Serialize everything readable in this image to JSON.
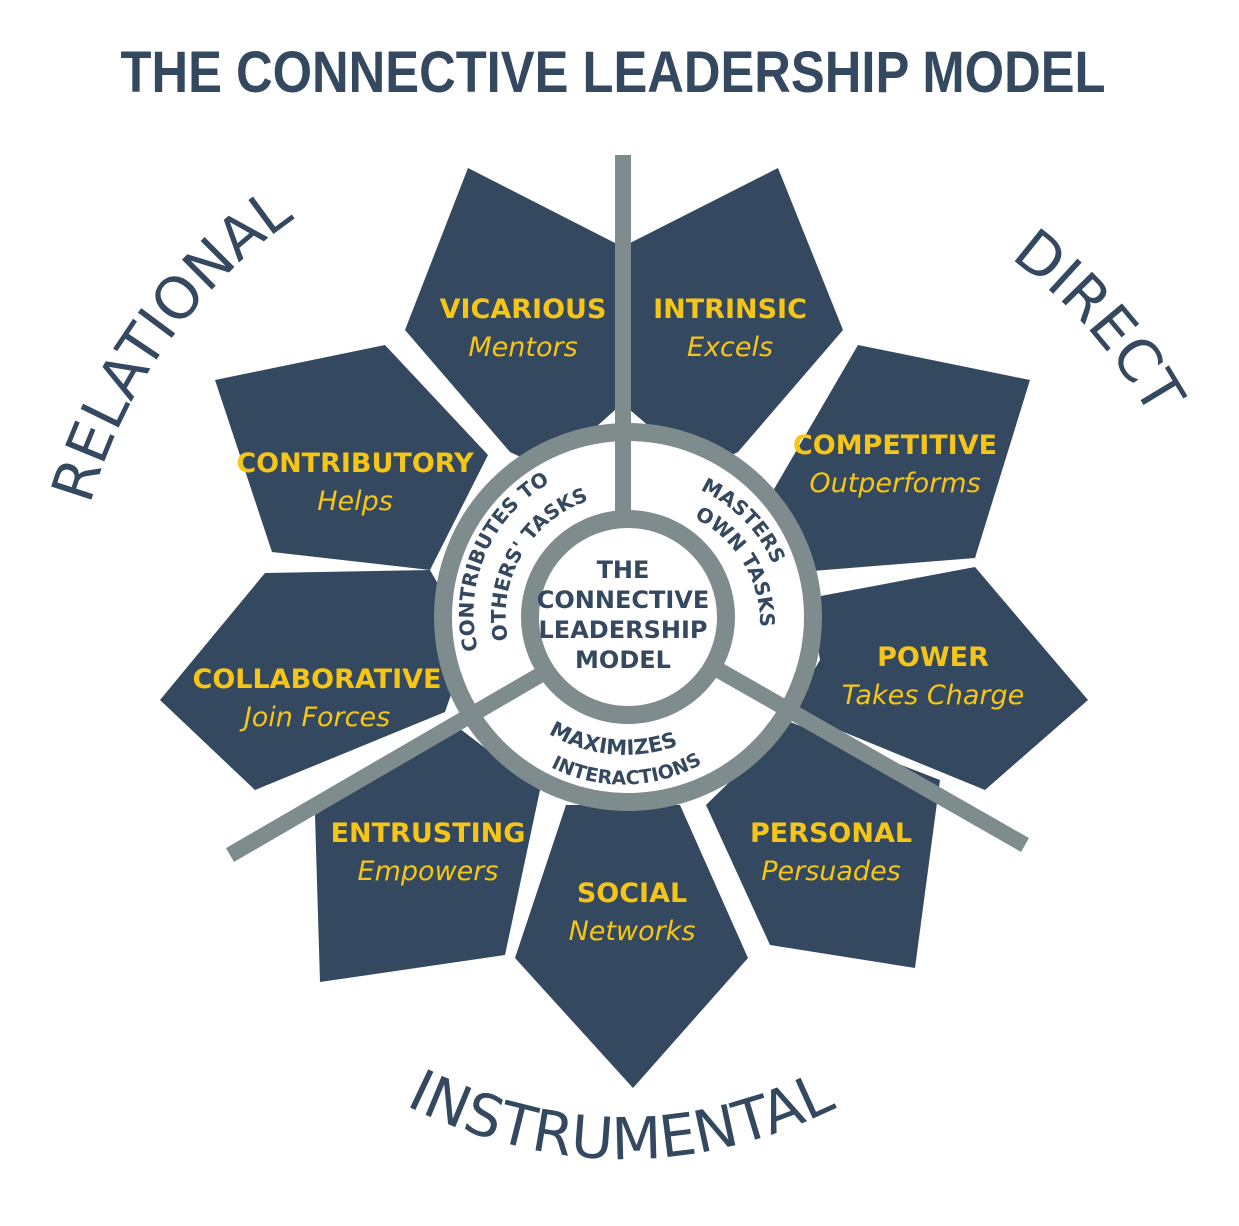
{
  "title": "THE CONNECTIVE LEADERSHIP MODEL",
  "domains": {
    "relational": "RELATIONAL",
    "direct": "DIRECT",
    "instrumental": "INSTRUMENTAL"
  },
  "center": [
    "THE",
    "CONNECTIVE",
    "LEADERSHIP",
    "MODEL"
  ],
  "ring": {
    "left": [
      "CONTRIBUTES TO",
      "OTHERS' TASKS"
    ],
    "right": [
      "MASTERS",
      "OWN TASKS"
    ],
    "bottom": [
      "MAXIMIZES",
      "INTERACTIONS"
    ]
  },
  "styles": [
    {
      "name": "VICARIOUS",
      "verb": "Mentors"
    },
    {
      "name": "INTRINSIC",
      "verb": "Excels"
    },
    {
      "name": "COMPETITIVE",
      "verb": "Outperforms"
    },
    {
      "name": "POWER",
      "verb": "Takes Charge"
    },
    {
      "name": "PERSONAL",
      "verb": "Persuades"
    },
    {
      "name": "SOCIAL",
      "verb": "Networks"
    },
    {
      "name": "ENTRUSTING",
      "verb": "Empowers"
    },
    {
      "name": "COLLABORATIVE",
      "verb": "Join Forces"
    },
    {
      "name": "CONTRIBUTORY",
      "verb": "Helps"
    }
  ],
  "colors": {
    "petal": "#34495f",
    "accent_text": "#f5c518",
    "ring_gray": "#7e8c8d",
    "dark_text": "#34495f"
  }
}
